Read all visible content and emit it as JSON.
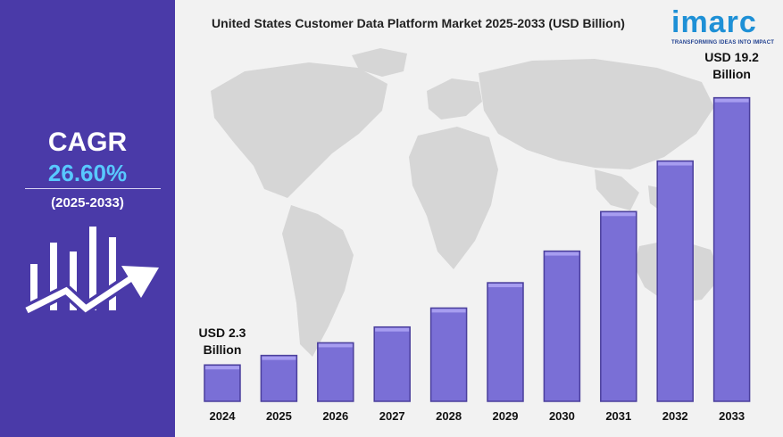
{
  "cagr": {
    "label": "CAGR",
    "value": "26.60%",
    "period": "(2025-2033)"
  },
  "brand": {
    "name": "imarc",
    "tagline": "TRANSFORMING IDEAS INTO IMPACT"
  },
  "callouts": {
    "first_line1": "USD 2.3",
    "first_line2": "Billion",
    "last_line1": "USD 19.2",
    "last_line2": "Billion"
  },
  "colors": {
    "left_panel": "#4a3aa8",
    "cagr_value": "#58c8ff",
    "bar_face": "#7a6fd6",
    "bar_side": "#4b3f9c",
    "bar_top": "#a79df0",
    "map": "#d6d6d6",
    "brand": "#1e90d6"
  },
  "chart_data": {
    "type": "bar",
    "title": "United States Customer Data Platform Market 2025-2033 (USD Billion)",
    "categories": [
      "2024",
      "2025",
      "2026",
      "2027",
      "2028",
      "2029",
      "2030",
      "2031",
      "2032",
      "2033"
    ],
    "series": [
      {
        "values": [
          2.3,
          2.9,
          3.7,
          4.7,
          5.9,
          7.5,
          9.5,
          12.0,
          15.2,
          19.2
        ]
      }
    ],
    "xlabel": "",
    "ylabel": "",
    "ylim": [
      0,
      22
    ],
    "grid": false,
    "legend": "none"
  }
}
